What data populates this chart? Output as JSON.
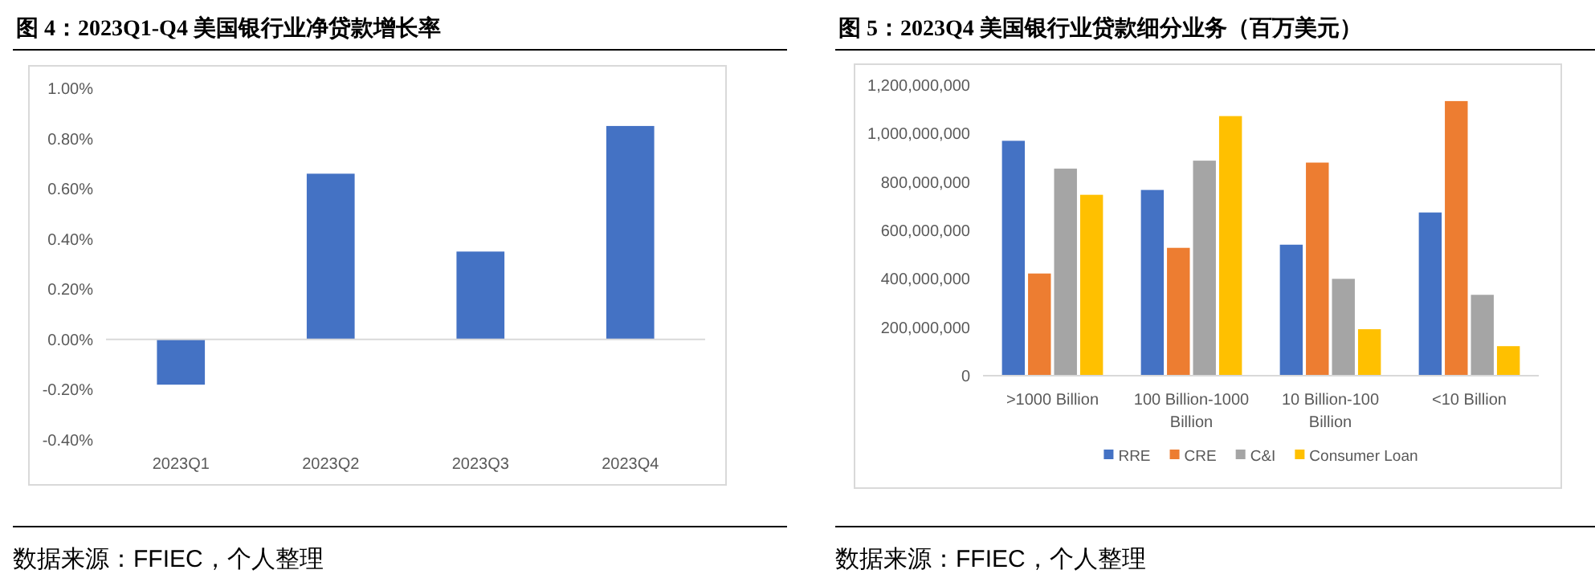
{
  "chart_data": [
    {
      "type": "bar",
      "title": "图 4：2023Q1-Q4 美国银行业净贷款增长率",
      "categories": [
        "2023Q1",
        "2023Q2",
        "2023Q3",
        "2023Q4"
      ],
      "values": [
        -0.18,
        0.66,
        0.35,
        0.85
      ],
      "color": "#4472c4",
      "ylim": [
        -0.4,
        1.0
      ],
      "yticks": [
        {
          "value": -0.4,
          "label": "-0.40%"
        },
        {
          "value": -0.2,
          "label": "-0.20%"
        },
        {
          "value": 0,
          "label": "0.00%"
        },
        {
          "value": 0.2,
          "label": "0.20%"
        },
        {
          "value": 0.4,
          "label": "0.40%"
        },
        {
          "value": 0.6,
          "label": "0.60%"
        },
        {
          "value": 0.8,
          "label": "0.80%"
        },
        {
          "value": 1.0,
          "label": "1.00%"
        }
      ],
      "annotations": [
        "数据来源：FFIEC，个人整理"
      ]
    },
    {
      "type": "bar",
      "title": "图 5：2023Q4 美国银行业贷款细分业务（百万美元）",
      "categories": [
        ">1000 Billion",
        "100 Billion-1000 Billion",
        "10 Billion-100 Billion",
        "<10 Billion"
      ],
      "series": [
        {
          "name": "RRE",
          "color": "#4472c4",
          "values": [
            970000000,
            767000000,
            541000000,
            674000000
          ]
        },
        {
          "name": "CRE",
          "color": "#ed7d31",
          "values": [
            422000000,
            528000000,
            880000000,
            1134000000
          ]
        },
        {
          "name": "C&I",
          "color": "#a5a5a5",
          "values": [
            855000000,
            888000000,
            400000000,
            334000000
          ]
        },
        {
          "name": "Consumer Loan",
          "color": "#ffc000",
          "values": [
            747000000,
            1072000000,
            192000000,
            122000000
          ]
        }
      ],
      "ylim": [
        0,
        1200000000
      ],
      "yticks": [
        0,
        {
          "value": 200000000,
          "label": "200,000,000"
        },
        {
          "value": 400000000,
          "label": "400,000,000"
        },
        {
          "value": 600000000,
          "label": "600,000,000"
        },
        {
          "value": 800000000,
          "label": "800,000,000"
        },
        {
          "value": 1000000000,
          "label": "1,000,000,000"
        },
        {
          "value": 1200000000,
          "label": "1,200,000,000"
        }
      ],
      "legend": "bottom",
      "annotations": [
        "数据来源：FFIEC，个人整理"
      ]
    }
  ]
}
